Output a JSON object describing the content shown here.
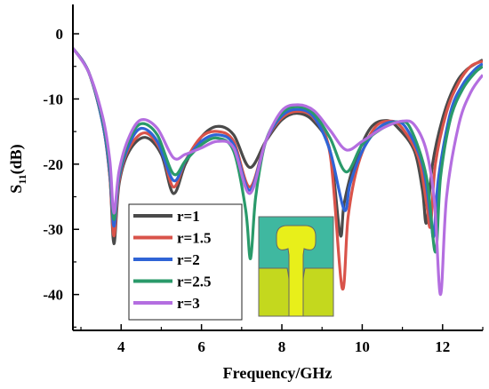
{
  "chart_data": {
    "type": "line",
    "xlabel": "Frequency/GHz",
    "ylabel_main": "S",
    "ylabel_sub": "11",
    "ylabel_suffix": "(dB)",
    "xlim": [
      2.8,
      13.0
    ],
    "ylim": [
      -45.5,
      4.5
    ],
    "x_ticks": [
      4,
      6,
      8,
      10,
      12
    ],
    "y_ticks": [
      0,
      -10,
      -20,
      -30,
      -40
    ],
    "grid": false,
    "legend_position": "bottom-left",
    "series": [
      {
        "name": "r=1",
        "color": "#4a4a4a",
        "points": [
          [
            2.8,
            -2.2
          ],
          [
            3.2,
            -6
          ],
          [
            3.55,
            -14
          ],
          [
            3.72,
            -22
          ],
          [
            3.82,
            -32.2
          ],
          [
            3.95,
            -23
          ],
          [
            4.2,
            -18
          ],
          [
            4.6,
            -15.9
          ],
          [
            5.0,
            -18.5
          ],
          [
            5.3,
            -24.5
          ],
          [
            5.6,
            -20
          ],
          [
            6.0,
            -15.8
          ],
          [
            6.4,
            -14.2
          ],
          [
            6.8,
            -15.5
          ],
          [
            7.2,
            -20.5
          ],
          [
            7.6,
            -16.5
          ],
          [
            8.0,
            -13.2
          ],
          [
            8.4,
            -12.2
          ],
          [
            8.8,
            -13.5
          ],
          [
            9.2,
            -18
          ],
          [
            9.45,
            -30.8
          ],
          [
            9.55,
            -26
          ],
          [
            9.8,
            -20
          ],
          [
            10.2,
            -14.5
          ],
          [
            10.6,
            -13.3
          ],
          [
            10.9,
            -14.5
          ],
          [
            11.3,
            -18
          ],
          [
            11.5,
            -24
          ],
          [
            11.6,
            -29
          ],
          [
            11.75,
            -20
          ],
          [
            12.0,
            -13
          ],
          [
            12.3,
            -8
          ],
          [
            12.6,
            -5.5
          ],
          [
            13.0,
            -4
          ]
        ]
      },
      {
        "name": "r=1.5",
        "color": "#d9534a",
        "points": [
          [
            2.8,
            -2.2
          ],
          [
            3.2,
            -6
          ],
          [
            3.55,
            -14
          ],
          [
            3.72,
            -22
          ],
          [
            3.82,
            -31
          ],
          [
            3.95,
            -22.5
          ],
          [
            4.2,
            -17.5
          ],
          [
            4.6,
            -15.2
          ],
          [
            5.0,
            -18
          ],
          [
            5.3,
            -23.5
          ],
          [
            5.6,
            -19.5
          ],
          [
            6.0,
            -15.8
          ],
          [
            6.4,
            -15
          ],
          [
            6.8,
            -16.5
          ],
          [
            7.2,
            -23.5
          ],
          [
            7.6,
            -16.5
          ],
          [
            8.0,
            -12.9
          ],
          [
            8.4,
            -11.9
          ],
          [
            8.8,
            -13
          ],
          [
            9.2,
            -18.5
          ],
          [
            9.5,
            -39
          ],
          [
            9.65,
            -28
          ],
          [
            9.9,
            -20
          ],
          [
            10.3,
            -14.5
          ],
          [
            10.7,
            -13.4
          ],
          [
            11.0,
            -14.5
          ],
          [
            11.4,
            -19
          ],
          [
            11.6,
            -26
          ],
          [
            11.7,
            -29.5
          ],
          [
            11.82,
            -20
          ],
          [
            12.1,
            -12
          ],
          [
            12.4,
            -7.5
          ],
          [
            12.7,
            -5
          ],
          [
            13.0,
            -4.2
          ]
        ]
      },
      {
        "name": "r=2",
        "color": "#2f64d6",
        "points": [
          [
            2.8,
            -2.2
          ],
          [
            3.2,
            -6
          ],
          [
            3.55,
            -14
          ],
          [
            3.72,
            -21.5
          ],
          [
            3.82,
            -29.5
          ],
          [
            3.95,
            -22
          ],
          [
            4.2,
            -17
          ],
          [
            4.5,
            -14.5
          ],
          [
            4.9,
            -16.5
          ],
          [
            5.3,
            -22.5
          ],
          [
            5.6,
            -19.5
          ],
          [
            6.0,
            -16.5
          ],
          [
            6.4,
            -15.5
          ],
          [
            6.8,
            -17
          ],
          [
            7.2,
            -24
          ],
          [
            7.6,
            -16.5
          ],
          [
            8.0,
            -12.6
          ],
          [
            8.4,
            -11.6
          ],
          [
            8.8,
            -12.8
          ],
          [
            9.2,
            -18
          ],
          [
            9.55,
            -27
          ],
          [
            9.7,
            -23
          ],
          [
            10.0,
            -18
          ],
          [
            10.4,
            -14.5
          ],
          [
            10.8,
            -13.5
          ],
          [
            11.1,
            -14.5
          ],
          [
            11.5,
            -20
          ],
          [
            11.7,
            -28
          ],
          [
            11.78,
            -31
          ],
          [
            11.9,
            -22
          ],
          [
            12.2,
            -12
          ],
          [
            12.5,
            -7.8
          ],
          [
            12.8,
            -5.5
          ],
          [
            13.0,
            -4.6
          ]
        ]
      },
      {
        "name": "r=2.5",
        "color": "#2a9a6a",
        "points": [
          [
            2.8,
            -2.2
          ],
          [
            3.2,
            -6
          ],
          [
            3.55,
            -13.5
          ],
          [
            3.72,
            -20.5
          ],
          [
            3.82,
            -28.5
          ],
          [
            3.95,
            -21.5
          ],
          [
            4.2,
            -16.3
          ],
          [
            4.5,
            -13.8
          ],
          [
            4.9,
            -15.5
          ],
          [
            5.3,
            -21.5
          ],
          [
            5.6,
            -19.5
          ],
          [
            6.0,
            -17
          ],
          [
            6.4,
            -16
          ],
          [
            6.8,
            -18
          ],
          [
            7.1,
            -27
          ],
          [
            7.22,
            -34.5
          ],
          [
            7.35,
            -25
          ],
          [
            7.6,
            -16.5
          ],
          [
            8.0,
            -12.2
          ],
          [
            8.4,
            -11.2
          ],
          [
            8.8,
            -12.3
          ],
          [
            9.2,
            -16
          ],
          [
            9.6,
            -21.2
          ],
          [
            10.0,
            -17
          ],
          [
            10.5,
            -14.5
          ],
          [
            10.9,
            -13.5
          ],
          [
            11.2,
            -14.5
          ],
          [
            11.6,
            -22
          ],
          [
            11.82,
            -33.5
          ],
          [
            11.95,
            -22
          ],
          [
            12.2,
            -13
          ],
          [
            12.5,
            -8.5
          ],
          [
            12.8,
            -6
          ],
          [
            13.0,
            -5
          ]
        ]
      },
      {
        "name": "r=3",
        "color": "#b46ee0",
        "points": [
          [
            2.8,
            -2.2
          ],
          [
            3.2,
            -6
          ],
          [
            3.55,
            -13
          ],
          [
            3.72,
            -19.5
          ],
          [
            3.82,
            -27.5
          ],
          [
            3.95,
            -21
          ],
          [
            4.2,
            -15.8
          ],
          [
            4.5,
            -13.2
          ],
          [
            4.9,
            -14.5
          ],
          [
            5.3,
            -19
          ],
          [
            5.6,
            -18.5
          ],
          [
            6.0,
            -17.5
          ],
          [
            6.4,
            -16.5
          ],
          [
            6.8,
            -17.5
          ],
          [
            7.2,
            -24.5
          ],
          [
            7.6,
            -16.5
          ],
          [
            8.0,
            -11.8
          ],
          [
            8.4,
            -10.9
          ],
          [
            8.8,
            -11.8
          ],
          [
            9.2,
            -14.8
          ],
          [
            9.6,
            -17.8
          ],
          [
            10.0,
            -16.5
          ],
          [
            10.5,
            -14.5
          ],
          [
            11.0,
            -13.4
          ],
          [
            11.3,
            -14
          ],
          [
            11.6,
            -18
          ],
          [
            11.8,
            -26
          ],
          [
            11.95,
            -40
          ],
          [
            12.1,
            -25
          ],
          [
            12.4,
            -14
          ],
          [
            12.7,
            -9
          ],
          [
            13.0,
            -6.3
          ]
        ]
      }
    ],
    "inset": {
      "description": "antenna geometry",
      "colors": {
        "substrate": "#3fb8a0",
        "patch": "#e8ef1a",
        "ground": "#c4d81e",
        "outline": "#666666"
      }
    }
  }
}
